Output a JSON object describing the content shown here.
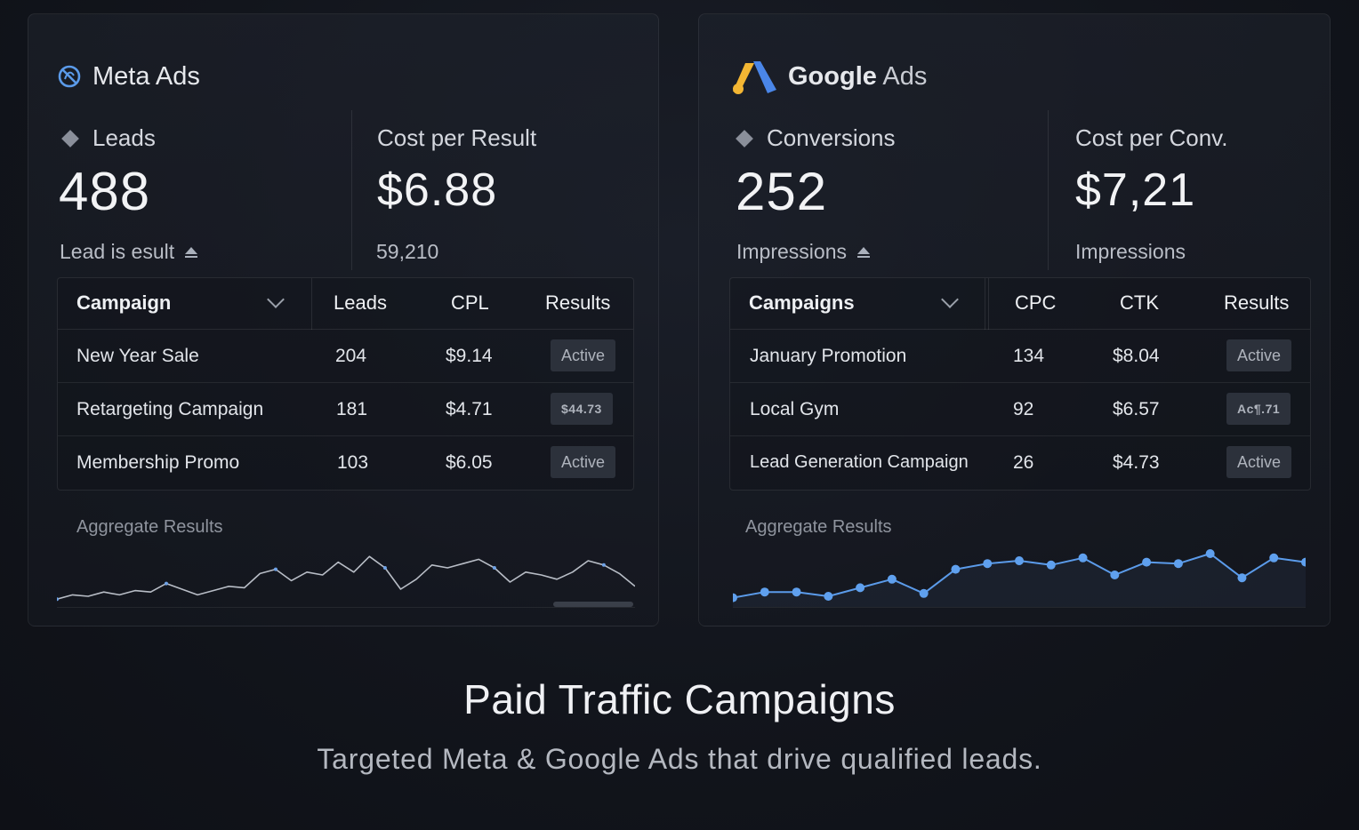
{
  "meta": {
    "brand": "Meta Ads",
    "icon": "meta-ring-icon",
    "stat1": {
      "label": "Leads",
      "value": "488",
      "sub": "Lead is esult"
    },
    "stat2": {
      "label": "Cost per Result",
      "value": "$6.88",
      "sub": "59,210"
    },
    "table": {
      "headers": [
        "Campaign",
        "Leads",
        "CPL",
        "Results"
      ],
      "rows": [
        {
          "name": "New Year Sale",
          "v1": "204",
          "v2": "$9.14",
          "badge": "Active"
        },
        {
          "name": "Retargeting Campaign",
          "v1": "181",
          "v2": "$4.71",
          "badge": "$44.73"
        },
        {
          "name": "Membership Promo",
          "v1": "103",
          "v2": "$6.05",
          "badge": "Active"
        }
      ]
    },
    "aggregate_label": "Aggregate Results"
  },
  "google": {
    "brand_strong": "Google",
    "brand_light": " Ads",
    "icon": "google-ads-icon",
    "stat1": {
      "label": "Conversions",
      "value": "252",
      "sub": "Impressions"
    },
    "stat2": {
      "label": "Cost per Conv.",
      "value": "$7,21",
      "sub": "Impressions"
    },
    "table": {
      "headers": [
        "Campaigns",
        "CPC",
        "CTK",
        "Results"
      ],
      "rows": [
        {
          "name": "January Promotion",
          "v1": "134",
          "v2": "$8.04",
          "badge": "Active"
        },
        {
          "name": "Local Gym",
          "v1": "92",
          "v2": "$6.57",
          "badge": "Ac¶.71"
        },
        {
          "name": "Lead Generation Campaign",
          "v1": "26",
          "v2": "$4.73",
          "badge": "Active"
        }
      ]
    },
    "aggregate_label": "Aggregate Results"
  },
  "hero": {
    "title": "Paid Traffic Campaigns",
    "subtitle": "Targeted Meta & Google Ads that drive qualified leads."
  },
  "colors": {
    "accent_blue": "#5b9bea",
    "google_yellow": "#f3b633",
    "google_blue": "#4a86e8"
  },
  "chart_data": [
    {
      "type": "line",
      "title": "Aggregate Results",
      "series": [
        {
          "name": "Meta",
          "values": [
            3,
            6,
            5,
            8,
            6,
            9,
            8,
            14,
            10,
            6,
            9,
            12,
            11,
            21,
            24,
            16,
            22,
            20,
            29,
            22,
            33,
            25,
            10,
            17,
            27,
            25,
            28,
            31,
            25,
            15,
            22,
            20,
            17,
            22,
            30,
            27,
            21,
            12
          ]
        }
      ],
      "ylim": [
        0,
        40
      ]
    },
    {
      "type": "line",
      "title": "Aggregate Results",
      "series": [
        {
          "name": "Google",
          "values": [
            4,
            8,
            8,
            5,
            11,
            17,
            7,
            24,
            28,
            30,
            27,
            32,
            20,
            29,
            28,
            35,
            18,
            32,
            29
          ]
        }
      ],
      "ylim": [
        0,
        40
      ]
    }
  ]
}
